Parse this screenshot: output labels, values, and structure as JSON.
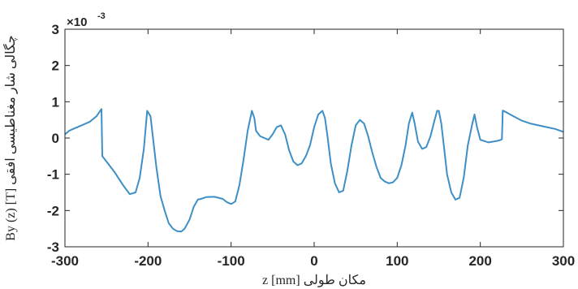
{
  "chart_data": {
    "type": "line",
    "xlabel": "z [mm]  مکان طولی",
    "ylabel": "By (z) [T] چگالی شار مغناطیسی افقی",
    "exponent_label": "×10",
    "exponent_power": "-3",
    "xlim": [
      -300,
      300
    ],
    "ylim": [
      -3,
      3
    ],
    "xticks": [
      "-300",
      "-200",
      "-100",
      "0",
      "100",
      "200",
      "300"
    ],
    "yticks": [
      "-3",
      "-2",
      "-1",
      "0",
      "1",
      "2",
      "3"
    ],
    "grid": false,
    "line_color": "#3d8fc6",
    "series": [
      {
        "x": [
          -300,
          -295,
          -290,
          -280,
          -270,
          -262,
          -256,
          -255,
          -250,
          -240,
          -230,
          -222,
          -215,
          -210,
          -205,
          -201,
          -197,
          -193,
          -190,
          -185,
          -180,
          -175,
          -170,
          -165,
          -160,
          -156,
          -150,
          -145,
          -140,
          -135,
          -130,
          -120,
          -110,
          -105,
          -100,
          -95,
          -90,
          -85,
          -80,
          -75,
          -72,
          -70,
          -65,
          -60,
          -55,
          -50,
          -45,
          -40,
          -35,
          -30,
          -25,
          -20,
          -15,
          -10,
          -5,
          0,
          5,
          10,
          13,
          16,
          20,
          25,
          30,
          35,
          40,
          45,
          50,
          55,
          60,
          65,
          70,
          75,
          80,
          85,
          90,
          95,
          100,
          105,
          110,
          114,
          118,
          121,
          125,
          130,
          135,
          140,
          145,
          148,
          150,
          153,
          157,
          160,
          165,
          170,
          175,
          180,
          185,
          190,
          193,
          196,
          200,
          210,
          220,
          225,
          226,
          227,
          232,
          240,
          250,
          260,
          270,
          280,
          290,
          300
        ],
        "y": [
          0.1,
          0.2,
          0.25,
          0.35,
          0.45,
          0.6,
          0.8,
          -0.5,
          -0.65,
          -0.95,
          -1.3,
          -1.55,
          -1.5,
          -1.1,
          -0.3,
          0.75,
          0.6,
          -0.2,
          -0.8,
          -1.6,
          -2.0,
          -2.35,
          -2.5,
          -2.57,
          -2.58,
          -2.5,
          -2.25,
          -1.9,
          -1.7,
          -1.67,
          -1.63,
          -1.62,
          -1.68,
          -1.77,
          -1.82,
          -1.75,
          -1.3,
          -0.6,
          0.2,
          0.75,
          0.55,
          0.2,
          0.05,
          0.0,
          -0.05,
          0.1,
          0.3,
          0.35,
          0.1,
          -0.35,
          -0.65,
          -0.75,
          -0.7,
          -0.5,
          -0.2,
          0.3,
          0.65,
          0.75,
          0.55,
          0.05,
          -0.7,
          -1.25,
          -1.5,
          -1.45,
          -0.9,
          -0.2,
          0.35,
          0.5,
          0.4,
          0.05,
          -0.4,
          -0.8,
          -1.1,
          -1.2,
          -1.25,
          -1.22,
          -1.1,
          -0.75,
          -0.2,
          0.4,
          0.7,
          0.4,
          -0.1,
          -0.3,
          -0.25,
          0.05,
          0.5,
          0.75,
          0.75,
          0.4,
          -0.4,
          -1.0,
          -1.5,
          -1.7,
          -1.65,
          -1.1,
          -0.2,
          0.35,
          0.65,
          0.3,
          -0.05,
          -0.12,
          -0.08,
          -0.05,
          -0.03,
          0.76,
          0.7,
          0.6,
          0.48,
          0.4,
          0.35,
          0.3,
          0.25,
          0.17
        ]
      }
    ]
  }
}
